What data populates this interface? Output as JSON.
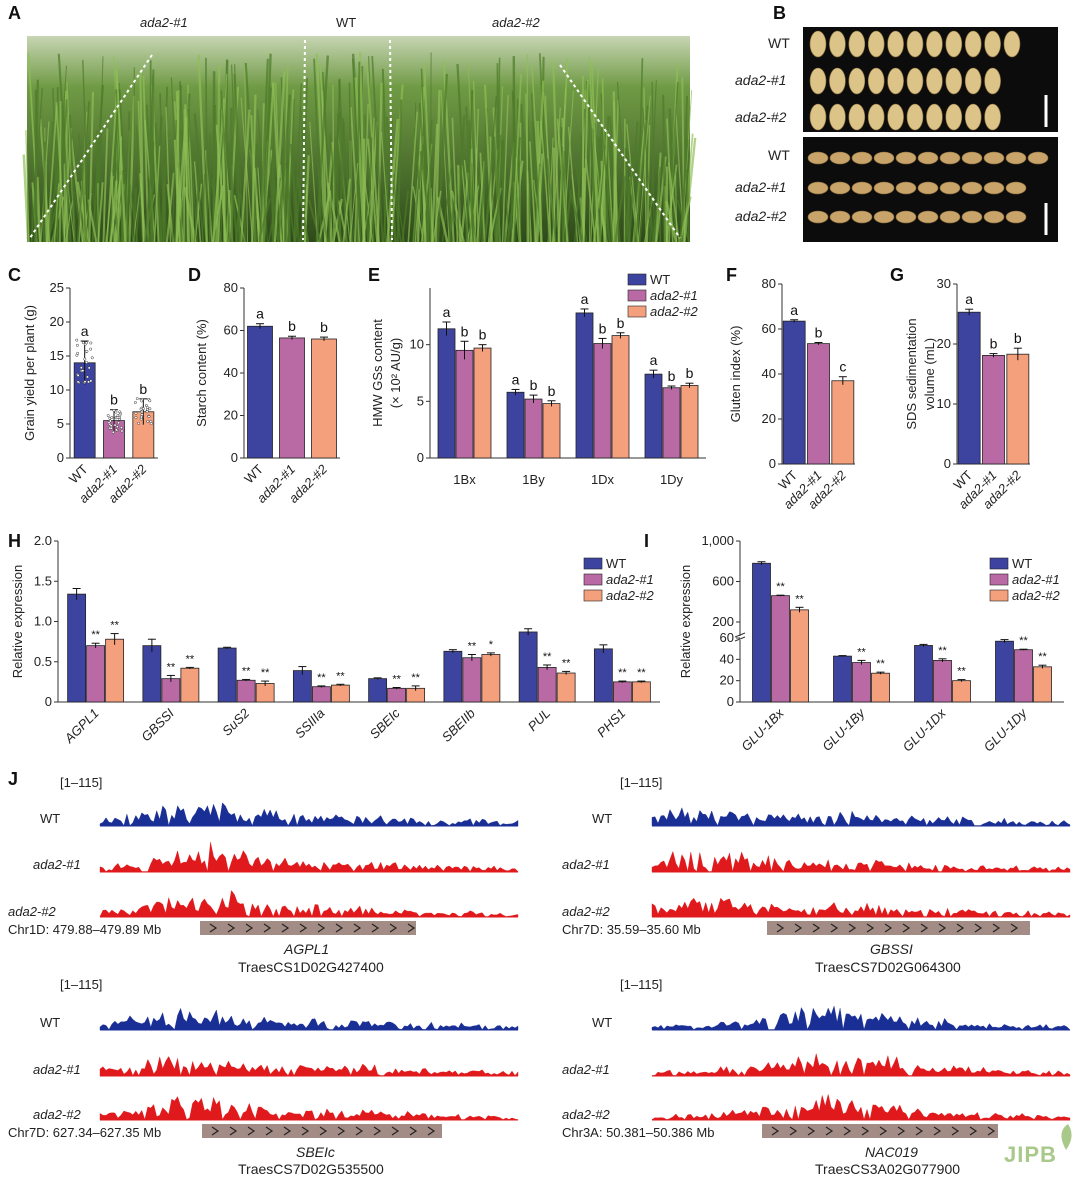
{
  "panels": {
    "A": "A",
    "B": "B",
    "C": "C",
    "D": "D",
    "E": "E",
    "F": "F",
    "G": "G",
    "H": "H",
    "I": "I",
    "J": "J"
  },
  "photo_a": {
    "labels": [
      "ada2-#1",
      "WT",
      "ada2-#2"
    ]
  },
  "grains_b": {
    "rows": [
      "WT",
      "ada2-#1",
      "ada2-#2"
    ],
    "counts": [
      11,
      10,
      10
    ]
  },
  "colors": {
    "wt": "#3d44a0",
    "ada1": "#b96aa5",
    "ada2": "#f4a07c",
    "track_wt": "#1a2f96",
    "track_mut": "#e0191c",
    "gene_bar": "#a48c86",
    "field_dark": "#2e4a1a",
    "field_light": "#8fbf55"
  },
  "chart_data": [
    {
      "panel": "C",
      "type": "bar",
      "ylabel": "Grain yield per plant (g)",
      "ylim": [
        0,
        25
      ],
      "yticks": [
        0,
        5,
        10,
        15,
        20,
        25
      ],
      "categories": [
        "WT",
        "ada2-#1",
        "ada2-#2"
      ],
      "values": [
        14.0,
        5.5,
        6.8
      ],
      "errors": [
        3.2,
        1.6,
        1.9
      ],
      "letters": [
        "a",
        "b",
        "b"
      ]
    },
    {
      "panel": "D",
      "type": "bar",
      "ylabel": "Starch content (%)",
      "ylim": [
        0,
        80
      ],
      "yticks": [
        0,
        20,
        40,
        60,
        80
      ],
      "categories": [
        "WT",
        "ada2-#1",
        "ada2-#2"
      ],
      "values": [
        62,
        56.5,
        56
      ],
      "errors": [
        1.2,
        0.8,
        0.9
      ],
      "letters": [
        "a",
        "b",
        "b"
      ]
    },
    {
      "panel": "E",
      "type": "bar",
      "ylabel": "HMW GSs content",
      "ylabel2": "(× 10² AU/g)",
      "ylim": [
        0,
        15
      ],
      "yticks": [
        0,
        5,
        10
      ],
      "categories": [
        "1Bx",
        "1By",
        "1Dx",
        "1Dy"
      ],
      "series": [
        {
          "name": "WT",
          "values": [
            11.4,
            5.8,
            12.8,
            7.4
          ],
          "errors": [
            0.6,
            0.25,
            0.35,
            0.35
          ],
          "letters": [
            "a",
            "a",
            "a",
            "a"
          ]
        },
        {
          "name": "ada2-#1",
          "values": [
            9.5,
            5.2,
            10.1,
            6.2
          ],
          "errors": [
            0.8,
            0.35,
            0.45,
            0.15
          ],
          "letters": [
            "b",
            "b",
            "b",
            "b"
          ]
        },
        {
          "name": "ada2-#2",
          "values": [
            9.7,
            4.8,
            10.8,
            6.4
          ],
          "errors": [
            0.3,
            0.25,
            0.25,
            0.2
          ],
          "letters": [
            "b",
            "b",
            "b",
            "b"
          ]
        }
      ]
    },
    {
      "panel": "F",
      "type": "bar",
      "ylabel": "Gluten index (%)",
      "ylim": [
        0,
        80
      ],
      "yticks": [
        0,
        20,
        40,
        60,
        80
      ],
      "categories": [
        "WT",
        "ada2-#1",
        "ada2-#2"
      ],
      "values": [
        63.5,
        53.5,
        37
      ],
      "errors": [
        0.6,
        0.5,
        1.8
      ],
      "letters": [
        "a",
        "b",
        "c"
      ]
    },
    {
      "panel": "G",
      "type": "bar",
      "ylabel": "SDS sedimentation",
      "ylabel2": "volume (mL)",
      "ylim": [
        0,
        30
      ],
      "yticks": [
        0,
        10,
        20,
        30
      ],
      "categories": [
        "WT",
        "ada2-#1",
        "ada2-#2"
      ],
      "values": [
        25.3,
        18.1,
        18.3
      ],
      "errors": [
        0.5,
        0.3,
        1.0
      ],
      "letters": [
        "a",
        "b",
        "b"
      ]
    },
    {
      "panel": "H",
      "type": "bar",
      "ylabel": "Relative expression",
      "ylim": [
        0,
        2.0
      ],
      "yticks": [
        0,
        0.5,
        1.0,
        1.5,
        2.0
      ],
      "ytick_labels": [
        "0",
        "0.5",
        "1.0",
        "1.5",
        "2.0"
      ],
      "categories": [
        "AGPL1",
        "GBSSI",
        "SuS2",
        "SSIIIa",
        "SBEIc",
        "SBEIIb",
        "PUL",
        "PHS1"
      ],
      "series": [
        {
          "name": "WT",
          "values": [
            1.34,
            0.7,
            0.67,
            0.39,
            0.29,
            0.63,
            0.87,
            0.66
          ],
          "errors": [
            0.07,
            0.08,
            0.01,
            0.05,
            0.01,
            0.02,
            0.04,
            0.05
          ],
          "marks": [
            "",
            "",
            "",
            "",
            "",
            "",
            "",
            ""
          ]
        },
        {
          "name": "ada2-#1",
          "values": [
            0.7,
            0.29,
            0.27,
            0.19,
            0.17,
            0.55,
            0.43,
            0.25
          ],
          "errors": [
            0.03,
            0.04,
            0.01,
            0.01,
            0.01,
            0.04,
            0.03,
            0.01
          ],
          "marks": [
            "**",
            "**",
            "**",
            "**",
            "**",
            "**",
            "**",
            "**"
          ]
        },
        {
          "name": "ada2-#2",
          "values": [
            0.78,
            0.42,
            0.23,
            0.21,
            0.17,
            0.59,
            0.36,
            0.25
          ],
          "errors": [
            0.07,
            0.01,
            0.03,
            0.01,
            0.03,
            0.02,
            0.02,
            0.01
          ],
          "marks": [
            "**",
            "**",
            "**",
            "**",
            "**",
            "*",
            "**",
            "**"
          ]
        }
      ]
    },
    {
      "panel": "I",
      "type": "bar",
      "ylabel": "Relative expression",
      "broken_axis": true,
      "ylim": [
        0,
        1000
      ],
      "yticks": [
        0,
        20,
        40,
        60,
        200,
        600,
        1000
      ],
      "ytick_labels": [
        "0",
        "20",
        "40",
        "60",
        "200",
        "600",
        "1,000"
      ],
      "categories": [
        "GLU-1Bx",
        "GLU-1By",
        "GLU-1Dx",
        "GLU-1Dy"
      ],
      "series": [
        {
          "name": "WT",
          "values": [
            780,
            43,
            53,
            57
          ],
          "errors": [
            15,
            0.5,
            1,
            1.5
          ],
          "marks": [
            "",
            "",
            "",
            ""
          ]
        },
        {
          "name": "ada2-#1",
          "values": [
            460,
            37,
            39,
            49
          ],
          "errors": [
            5,
            2,
            1.5,
            0.5
          ],
          "marks": [
            "**",
            "**",
            "**",
            "**"
          ]
        },
        {
          "name": "ada2-#2",
          "values": [
            320,
            27,
            20,
            33
          ],
          "errors": [
            25,
            1,
            1,
            1.5
          ],
          "marks": [
            "**",
            "**",
            "**",
            "**"
          ]
        }
      ]
    }
  ],
  "panel_j": {
    "range": "[1–115]",
    "tracks": [
      "WT",
      "ada2-#1",
      "ada2-#2"
    ],
    "loci": [
      {
        "coord": "Chr1D: 479.88–479.89 Mb",
        "gene": "AGPL1",
        "id": "TraesCS1D02G427400"
      },
      {
        "coord": "Chr7D: 35.59–35.60 Mb",
        "gene": "GBSSI",
        "id": "TraesCS7D02G064300"
      },
      {
        "coord": "Chr7D: 627.34–627.35 Mb",
        "gene": "SBEIc",
        "id": "TraesCS7D02G535500"
      },
      {
        "coord": "Chr3A: 50.381–50.386 Mb",
        "gene": "NAC019",
        "id": "TraesCS3A02G077900"
      }
    ]
  },
  "watermark": "JIPB"
}
